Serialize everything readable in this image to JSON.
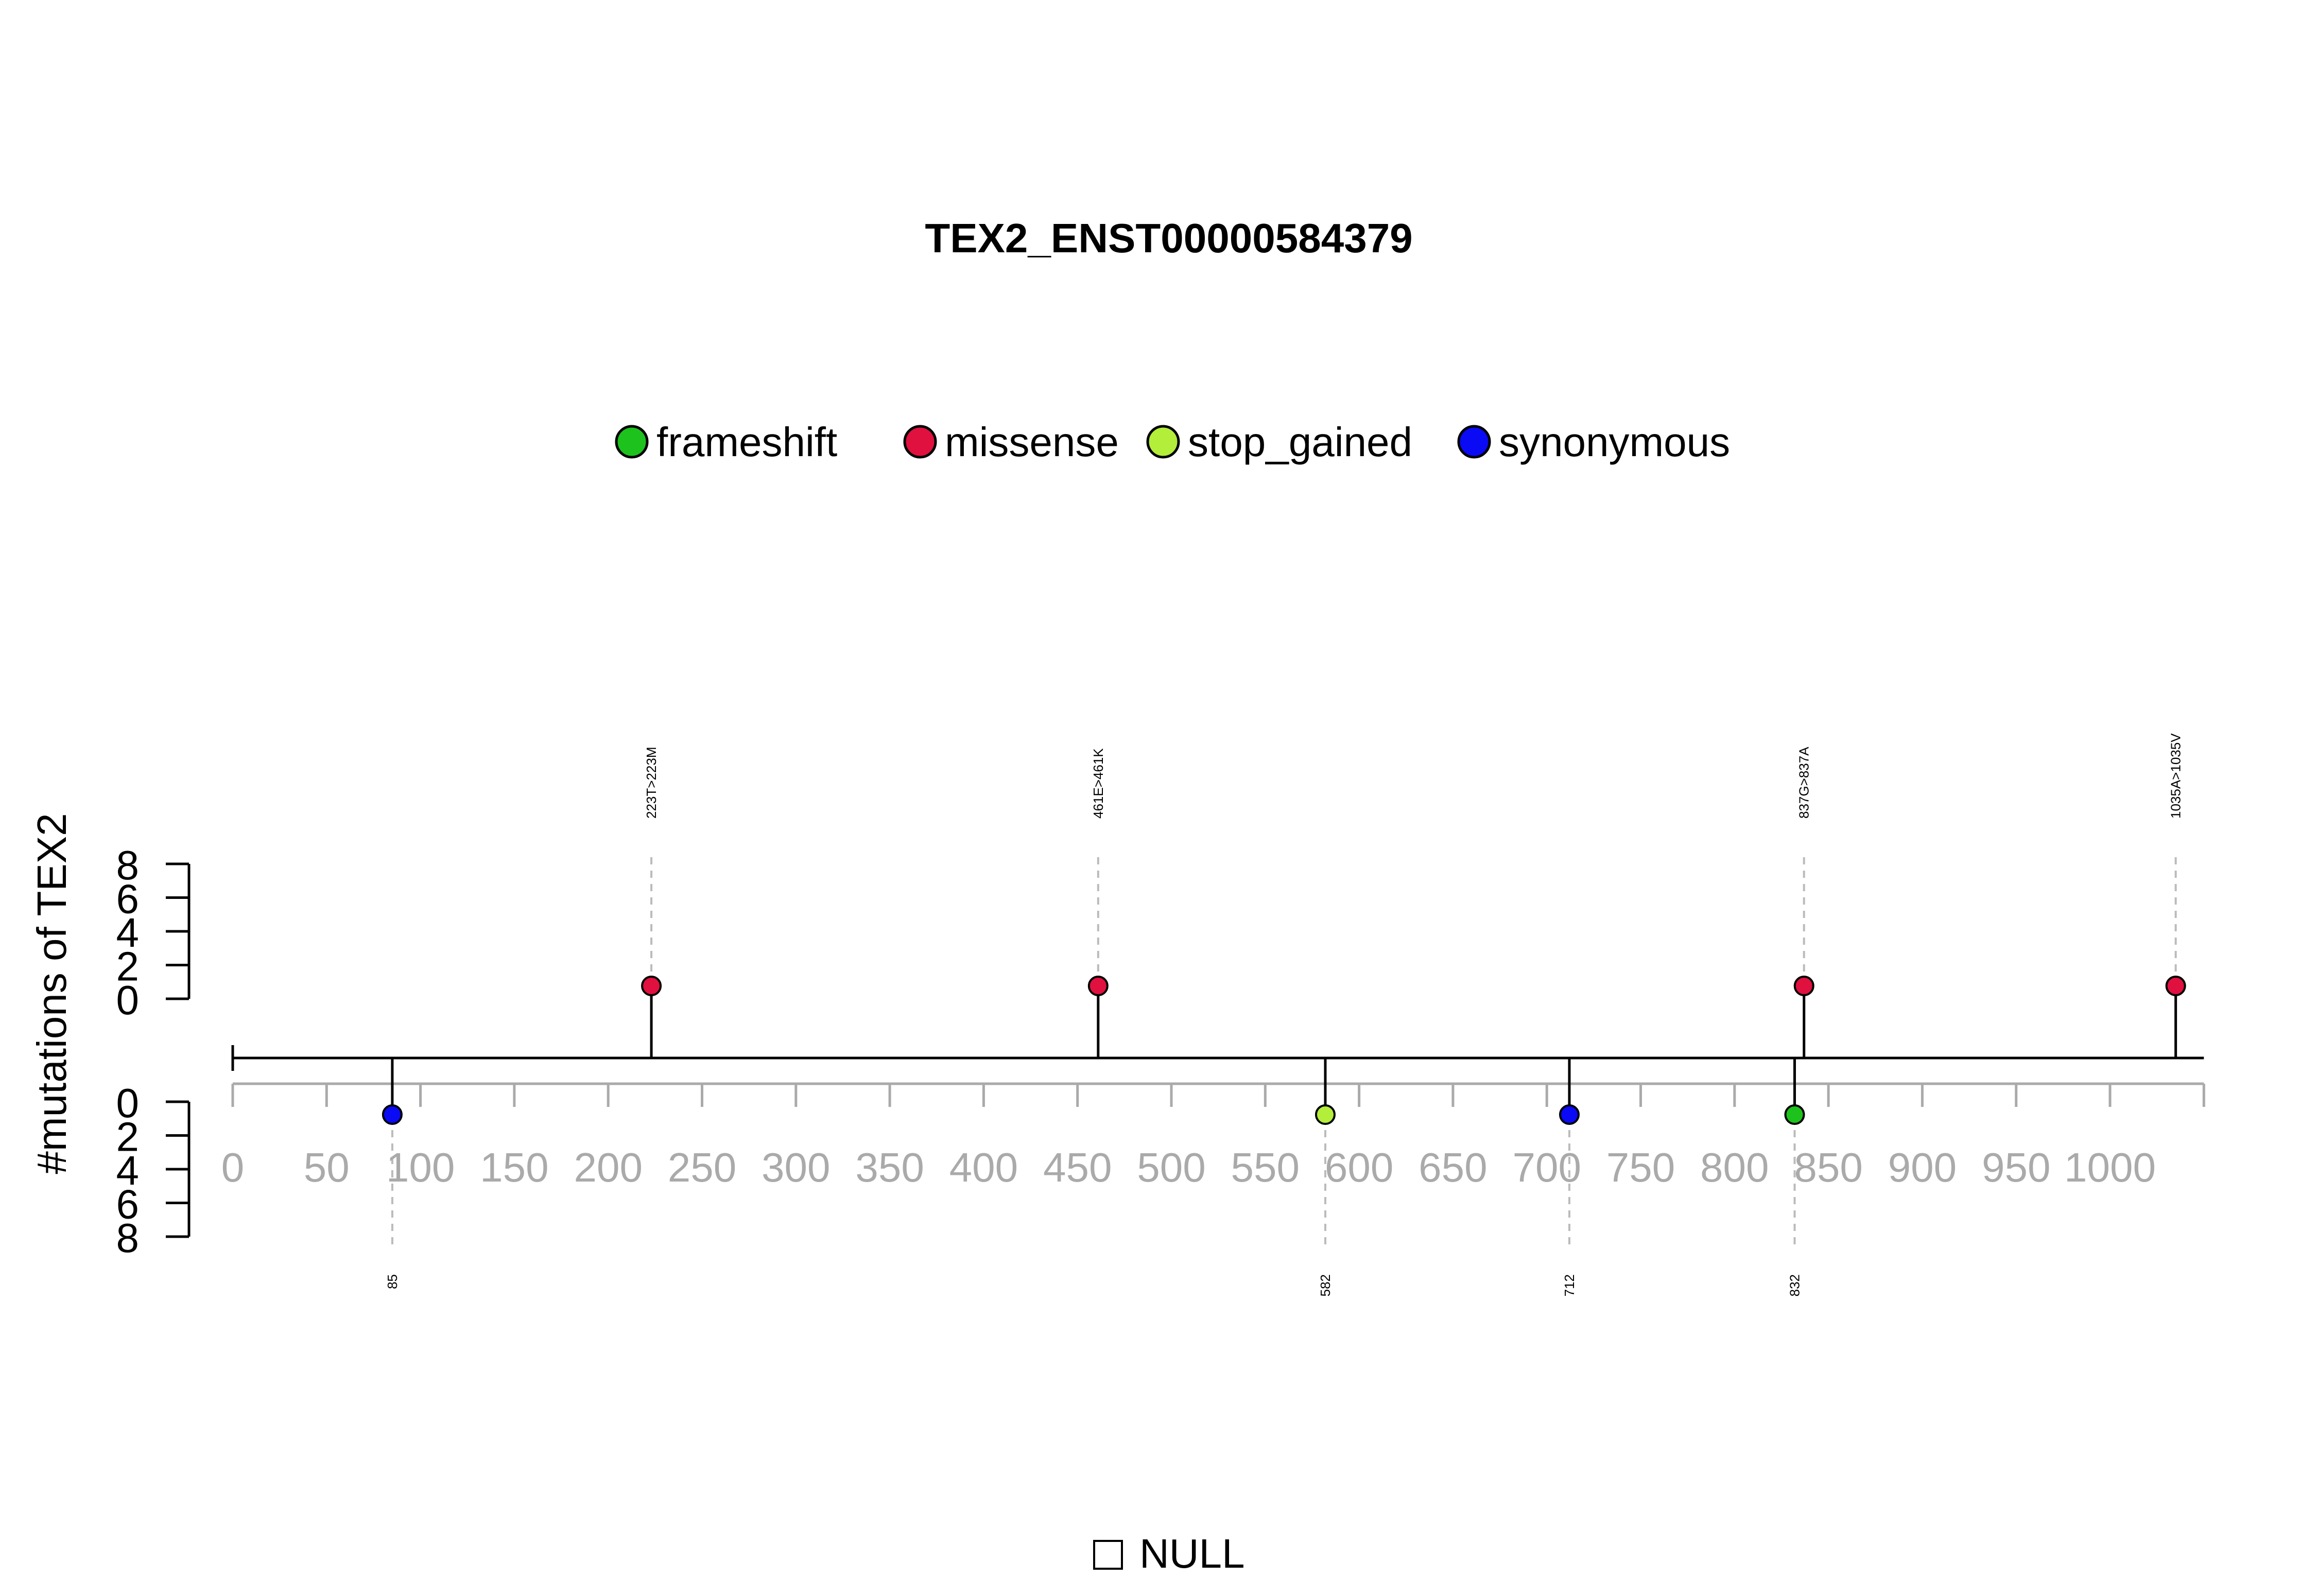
{
  "chart_data": {
    "type": "lollipop",
    "title": "TEX2_ENST00000584379",
    "ylabel": "#mutations of TEX2",
    "xlim": [
      0,
      1050
    ],
    "x_ticks": [
      0,
      50,
      100,
      150,
      200,
      250,
      300,
      350,
      400,
      450,
      500,
      550,
      600,
      650,
      700,
      750,
      800,
      850,
      900,
      950,
      1000
    ],
    "y_ticks": [
      0,
      2,
      4,
      6,
      8
    ],
    "ylim": [
      0,
      8
    ],
    "grid": false,
    "legend_position": "top",
    "legend": [
      {
        "name": "frameshift",
        "color": "#1DC21D"
      },
      {
        "name": "missense",
        "color": "#E0103F"
      },
      {
        "name": "stop_gained",
        "color": "#B2EE3A"
      },
      {
        "name": "synonymous",
        "color": "#0A0AF5"
      }
    ],
    "colors": {
      "axis": "#000000",
      "tick_labels": "#AAAAAA",
      "guide_lines": "#BBBBBB"
    },
    "mutations_top": [
      {
        "pos": 223,
        "count": 1,
        "type": "missense",
        "label": "223T>223M"
      },
      {
        "pos": 461,
        "count": 1,
        "type": "missense",
        "label": "461E>461K"
      },
      {
        "pos": 837,
        "count": 1,
        "type": "missense",
        "label": "837G>837A"
      },
      {
        "pos": 1035,
        "count": 1,
        "type": "missense",
        "label": "1035A>1035V"
      }
    ],
    "mutations_bottom": [
      {
        "pos": 85,
        "count": 1,
        "type": "synonymous",
        "label": "85"
      },
      {
        "pos": 582,
        "count": 1,
        "type": "stop_gained",
        "label": "582"
      },
      {
        "pos": 712,
        "count": 1,
        "type": "synonymous",
        "label": "712"
      },
      {
        "pos": 832,
        "count": 1,
        "type": "frameshift",
        "label": "832"
      }
    ],
    "domain_legend": {
      "label": "NULL",
      "fill": "#FFFFFF"
    }
  }
}
